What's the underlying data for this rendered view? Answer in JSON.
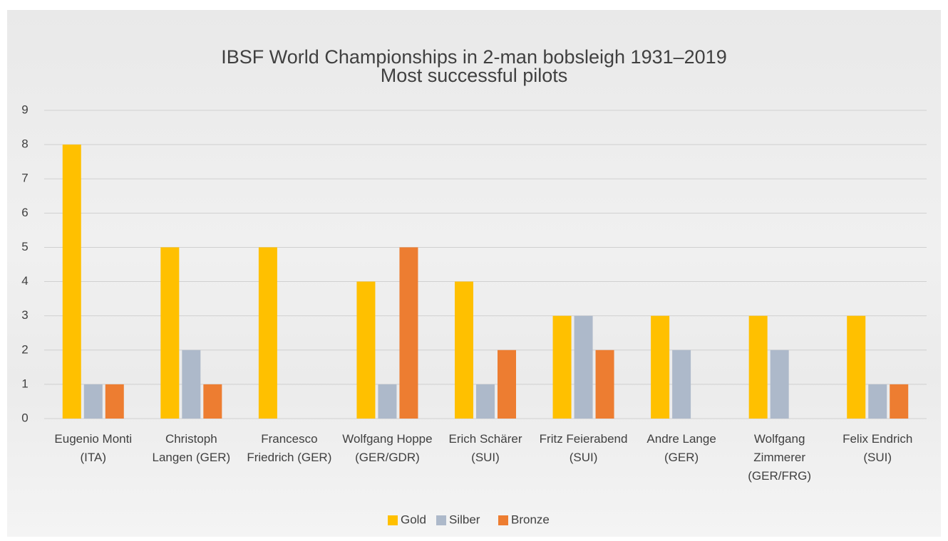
{
  "chart_data": {
    "type": "bar",
    "title": "IBSF World Championships in 2-man bobsleigh 1931–2019",
    "subtitle": "Most successful pilots",
    "categories": [
      "Eugenio Monti (ITA)",
      "Christoph Langen (GER)",
      "Francesco Friedrich (GER)",
      "Wolfgang Hoppe (GER/GDR)",
      "Erich Schärer (SUI)",
      "Fritz Feierabend (SUI)",
      "Andre Lange (GER)",
      "Wolfgang Zimmerer (GER/FRG)",
      "Felix Endrich (SUI)"
    ],
    "series": [
      {
        "name": "Gold",
        "color": "#ffc000",
        "values": [
          8,
          5,
          5,
          4,
          4,
          3,
          3,
          3,
          3
        ]
      },
      {
        "name": "Silber",
        "color": "#adb9ca",
        "values": [
          1,
          2,
          0,
          1,
          1,
          3,
          2,
          2,
          1
        ]
      },
      {
        "name": "Bronze",
        "color": "#ed7d31",
        "values": [
          1,
          1,
          0,
          5,
          2,
          2,
          0,
          0,
          1
        ]
      }
    ],
    "ylim": [
      0,
      9
    ],
    "yticks": [
      0,
      1,
      2,
      3,
      4,
      5,
      6,
      7,
      8,
      9
    ],
    "grid": true,
    "legend": "bottom"
  }
}
